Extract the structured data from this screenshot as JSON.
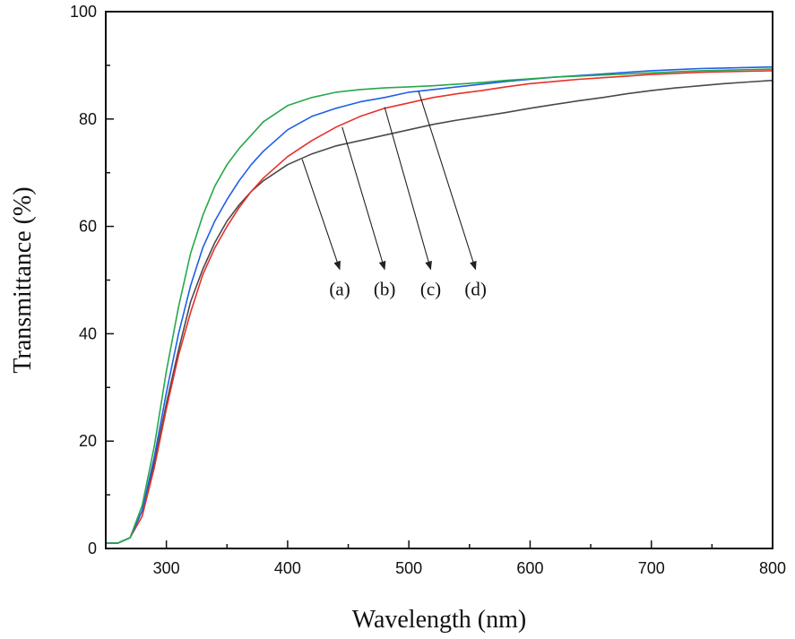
{
  "chart_data": {
    "type": "line",
    "xlabel": "Wavelength (nm)",
    "ylabel": "Transmittance (%)",
    "xlim": [
      250,
      800
    ],
    "ylim": [
      0,
      100
    ],
    "xticks": [
      300,
      400,
      500,
      600,
      700,
      800
    ],
    "yticks": [
      0,
      20,
      40,
      60,
      80,
      100
    ],
    "grid": false,
    "x": [
      250,
      260,
      270,
      280,
      290,
      300,
      310,
      320,
      330,
      340,
      350,
      360,
      370,
      380,
      390,
      400,
      420,
      440,
      460,
      480,
      500,
      520,
      540,
      560,
      580,
      600,
      620,
      640,
      660,
      680,
      700,
      720,
      740,
      760,
      780,
      800
    ],
    "series": [
      {
        "name": "(a)",
        "color": "#4a4a4a",
        "values": [
          1,
          1,
          2,
          7,
          16,
          27,
          37,
          46,
          52,
          57,
          61,
          64,
          66.5,
          68.5,
          70,
          71.5,
          73.5,
          75,
          76,
          77,
          78,
          79,
          79.8,
          80.5,
          81.2,
          82,
          82.7,
          83.4,
          84,
          84.7,
          85.3,
          85.8,
          86.2,
          86.6,
          86.9,
          87.2
        ]
      },
      {
        "name": "(b)",
        "color": "#e8302a",
        "values": [
          1,
          1,
          2,
          6,
          15,
          26,
          36,
          44,
          51,
          56,
          60,
          63.5,
          66.5,
          69,
          71,
          73,
          76,
          78.5,
          80.5,
          82,
          83,
          84,
          84.7,
          85.3,
          86,
          86.6,
          87,
          87.4,
          87.7,
          88,
          88.3,
          88.5,
          88.7,
          88.8,
          88.9,
          89
        ]
      },
      {
        "name": "(c)",
        "color": "#1f5fe6",
        "values": [
          1,
          1,
          2,
          7,
          17,
          29,
          40,
          49,
          56,
          61,
          65,
          68.5,
          71.5,
          74,
          76,
          78,
          80.5,
          82,
          83.2,
          84,
          85,
          85.5,
          86,
          86.5,
          87,
          87.4,
          87.8,
          88.1,
          88.4,
          88.7,
          89,
          89.2,
          89.4,
          89.5,
          89.6,
          89.7
        ]
      },
      {
        "name": "(d)",
        "color": "#27a84a",
        "values": [
          1,
          1,
          2,
          8,
          19,
          33,
          45,
          55,
          62,
          67.5,
          71.5,
          74.5,
          77,
          79.5,
          81,
          82.5,
          84,
          85,
          85.5,
          85.8,
          86,
          86.2,
          86.5,
          86.8,
          87.2,
          87.5,
          87.8,
          88,
          88.2,
          88.4,
          88.6,
          88.8,
          89,
          89.1,
          89.2,
          89.3
        ]
      }
    ],
    "annotations": [
      {
        "label": "(a)",
        "series": "(a)",
        "point": [
          412,
          72.5
        ],
        "arrow_tip": [
          443,
          52
        ]
      },
      {
        "label": "(b)",
        "series": "(b)",
        "point": [
          445,
          78.5
        ],
        "arrow_tip": [
          480,
          52
        ]
      },
      {
        "label": "(c)",
        "series": "(c)",
        "point": [
          480,
          82.2
        ],
        "arrow_tip": [
          518,
          52
        ]
      },
      {
        "label": "(d)",
        "series": "(d)",
        "point": [
          508,
          85.2
        ],
        "arrow_tip": [
          555,
          52
        ]
      }
    ]
  }
}
